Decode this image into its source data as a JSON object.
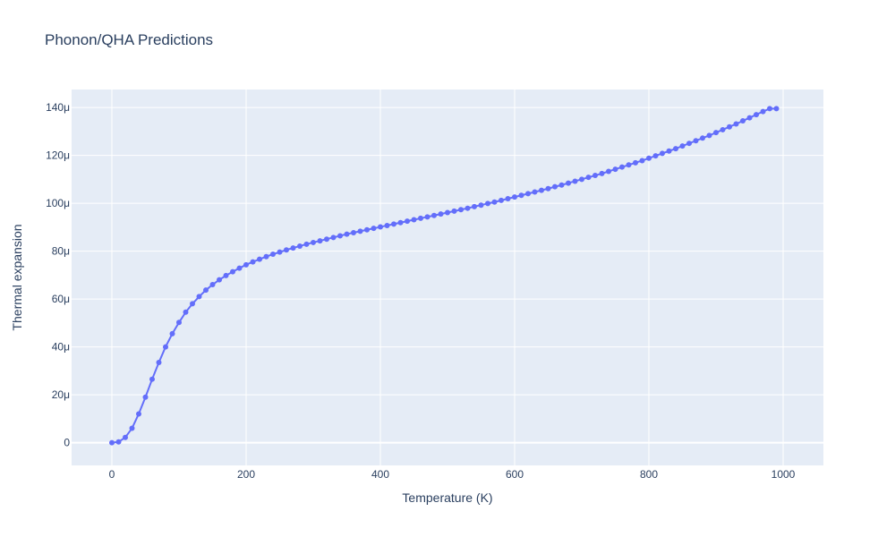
{
  "colors": {
    "plot_bg": "#e5ecf6",
    "grid": "#ffffff",
    "series": "#636efa",
    "text": "#2a3f5f"
  },
  "chart_data": {
    "type": "line",
    "mode": "lines+markers",
    "title": "Phonon/QHA Predictions",
    "xlabel": "Temperature (K)",
    "ylabel": "Thermal expansion",
    "xlim": [
      -60,
      1060
    ],
    "ylim": [
      -9.5e-06,
      0.0001475
    ],
    "grid": true,
    "x_ticks": [
      {
        "value": 0,
        "label": "0"
      },
      {
        "value": 200,
        "label": "200"
      },
      {
        "value": 400,
        "label": "400"
      },
      {
        "value": 600,
        "label": "600"
      },
      {
        "value": 800,
        "label": "800"
      },
      {
        "value": 1000,
        "label": "1000"
      }
    ],
    "y_ticks": [
      {
        "value": 0,
        "label": "0"
      },
      {
        "value": 2e-05,
        "label": "20μ"
      },
      {
        "value": 4e-05,
        "label": "40μ"
      },
      {
        "value": 6e-05,
        "label": "60μ"
      },
      {
        "value": 8e-05,
        "label": "80μ"
      },
      {
        "value": 0.0001,
        "label": "100μ"
      },
      {
        "value": 0.00012,
        "label": "120μ"
      },
      {
        "value": 0.00014,
        "label": "140μ"
      }
    ],
    "series": [
      {
        "x": [
          0,
          10,
          20,
          30,
          40,
          50,
          60,
          70,
          80,
          90,
          100,
          110,
          120,
          130,
          140,
          150,
          160,
          170,
          180,
          190,
          200,
          210,
          220,
          230,
          240,
          250,
          260,
          270,
          280,
          290,
          300,
          310,
          320,
          330,
          340,
          350,
          360,
          370,
          380,
          390,
          400,
          410,
          420,
          430,
          440,
          450,
          460,
          470,
          480,
          490,
          500,
          510,
          520,
          530,
          540,
          550,
          560,
          570,
          580,
          590,
          600,
          610,
          620,
          630,
          640,
          650,
          660,
          670,
          680,
          690,
          700,
          710,
          720,
          730,
          740,
          750,
          760,
          770,
          780,
          790,
          800,
          810,
          820,
          830,
          840,
          850,
          860,
          870,
          880,
          890,
          900,
          910,
          920,
          930,
          940,
          950,
          960,
          970,
          980,
          990
        ],
        "y": [
          0,
          3e-07,
          2.2e-06,
          6e-06,
          1.2e-05,
          1.9e-05,
          2.65e-05,
          3.35e-05,
          4e-05,
          4.55e-05,
          5.02e-05,
          5.45e-05,
          5.8e-05,
          6.1e-05,
          6.37e-05,
          6.6e-05,
          6.8e-05,
          6.98e-05,
          7.14e-05,
          7.29e-05,
          7.43e-05,
          7.55e-05,
          7.66e-05,
          7.77e-05,
          7.87e-05,
          7.96e-05,
          8.05e-05,
          8.13e-05,
          8.21e-05,
          8.29e-05,
          8.36e-05,
          8.43e-05,
          8.5e-05,
          8.57e-05,
          8.64e-05,
          8.71e-05,
          8.77e-05,
          8.83e-05,
          8.89e-05,
          8.95e-05,
          9.01e-05,
          9.07e-05,
          9.13e-05,
          9.19e-05,
          9.25e-05,
          9.31e-05,
          9.37e-05,
          9.43e-05,
          9.49e-05,
          9.55e-05,
          9.61e-05,
          9.67e-05,
          9.73e-05,
          9.79e-05,
          9.86e-05,
          9.92e-05,
          9.99e-05,
          0.0001005,
          0.0001012,
          0.0001019,
          0.0001026,
          0.0001033,
          0.000104,
          0.0001047,
          0.0001054,
          0.0001061,
          0.0001069,
          0.0001076,
          0.0001084,
          0.0001092,
          0.00011,
          0.0001108,
          0.0001116,
          0.0001124,
          0.0001133,
          0.0001142,
          0.0001151,
          0.000116,
          0.0001169,
          0.0001178,
          0.0001188,
          0.0001198,
          0.0001208,
          0.0001218,
          0.0001228,
          0.0001239,
          0.000125,
          0.0001261,
          0.0001272,
          0.0001283,
          0.0001295,
          0.0001307,
          0.0001319,
          0.0001331,
          0.0001344,
          0.0001357,
          0.000137,
          0.0001383,
          0.0001395,
          0.0001395
        ]
      }
    ]
  }
}
